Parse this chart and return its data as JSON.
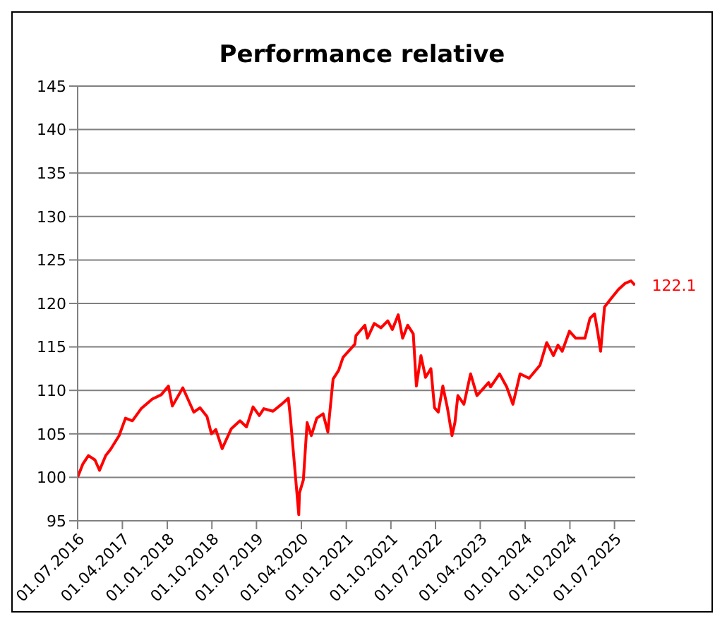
{
  "chart_data": {
    "type": "line",
    "title": "Performance relative",
    "x": [
      "2016-07-01",
      "2016-08-01",
      "2016-09-05",
      "2016-10-15",
      "2016-11-12",
      "2016-12-20",
      "2017-01-18",
      "2017-03-12",
      "2017-04-20",
      "2017-06-01",
      "2017-07-25",
      "2017-10-01",
      "2017-11-25",
      "2018-01-08",
      "2018-02-01",
      "2018-04-06",
      "2018-06-12",
      "2018-07-20",
      "2018-09-01",
      "2018-09-28",
      "2018-10-25",
      "2018-12-03",
      "2019-01-28",
      "2019-03-22",
      "2019-05-01",
      "2019-06-10",
      "2019-07-18",
      "2019-08-15",
      "2019-10-10",
      "2019-12-01",
      "2020-01-12",
      "2020-01-25",
      "2020-03-16",
      "2020-03-20",
      "2020-04-13",
      "2020-05-06",
      "2020-06-01",
      "2020-07-04",
      "2020-08-12",
      "2020-09-10",
      "2020-10-12",
      "2020-11-15",
      "2020-12-12",
      "2021-02-22",
      "2021-03-01",
      "2021-04-25",
      "2021-05-10",
      "2021-06-21",
      "2021-08-01",
      "2021-09-12",
      "2021-10-10",
      "2021-11-15",
      "2021-12-12",
      "2022-01-12",
      "2022-02-15",
      "2022-03-06",
      "2022-04-03",
      "2022-05-01",
      "2022-06-03",
      "2022-06-25",
      "2022-07-18",
      "2022-08-15",
      "2022-09-12",
      "2022-10-10",
      "2022-10-28",
      "2022-11-15",
      "2022-12-22",
      "2023-02-01",
      "2023-03-12",
      "2023-05-22",
      "2023-06-03",
      "2023-07-28",
      "2023-09-10",
      "2023-10-18",
      "2023-12-01",
      "2024-01-25",
      "2024-04-01",
      "2024-05-12",
      "2024-06-22",
      "2024-07-20",
      "2024-08-15",
      "2024-09-28",
      "2024-11-06",
      "2025-01-01",
      "2025-02-01",
      "2025-03-01",
      "2025-03-22",
      "2025-04-07",
      "2025-05-01",
      "2025-06-12",
      "2025-07-25",
      "2025-09-03",
      "2025-10-10",
      "2025-11-03"
    ],
    "values": [
      100,
      101.5,
      102.5,
      102,
      100.8,
      102.5,
      103.2,
      104.8,
      106.8,
      106.5,
      107.9,
      109,
      109.5,
      110.5,
      108.2,
      110.3,
      107.5,
      108,
      107,
      105,
      105.5,
      103.3,
      105.6,
      106.5,
      105.8,
      108.1,
      107.1,
      107.9,
      107.6,
      108.4,
      109.1,
      106.8,
      95.7,
      98.2,
      99.7,
      106.3,
      104.8,
      106.8,
      107.3,
      105.2,
      111.3,
      112.3,
      113.8,
      115.3,
      116.3,
      117.5,
      116,
      117.7,
      117.2,
      118,
      117,
      118.7,
      116,
      117.5,
      116.5,
      110.5,
      114,
      111.5,
      112.5,
      108,
      107.5,
      110.5,
      108,
      104.8,
      106.3,
      109.4,
      108.4,
      111.9,
      109.4,
      110.9,
      110.4,
      111.9,
      110.4,
      108.4,
      111.9,
      111.4,
      112.9,
      115.5,
      114,
      115.2,
      114.5,
      116.8,
      116,
      116,
      118.3,
      118.8,
      116.5,
      114.5,
      119.6,
      120.6,
      121.6,
      122.3,
      122.6,
      122.1
    ],
    "color": "#ff0000",
    "xlim": [
      "2016-07-01",
      "2025-11-05"
    ],
    "xticks": [
      {
        "value": "2016-07-01",
        "label": "01.07.2016"
      },
      {
        "value": "2017-04-01",
        "label": "01.04.2017"
      },
      {
        "value": "2018-01-01",
        "label": "01.01.2018"
      },
      {
        "value": "2018-10-01",
        "label": "01.10.2018"
      },
      {
        "value": "2019-07-01",
        "label": "01.07.2019"
      },
      {
        "value": "2020-04-01",
        "label": "01.04.2020"
      },
      {
        "value": "2021-01-01",
        "label": "01.01.2021"
      },
      {
        "value": "2021-10-01",
        "label": "01.10.2021"
      },
      {
        "value": "2022-07-01",
        "label": "01.07.2022"
      },
      {
        "value": "2023-04-01",
        "label": "01.04.2023"
      },
      {
        "value": "2024-01-01",
        "label": "01.01.2024"
      },
      {
        "value": "2024-10-01",
        "label": "01.10.2024"
      },
      {
        "value": "2025-07-01",
        "label": "01.07.2025"
      }
    ],
    "ylim": [
      95,
      145
    ],
    "yticks": [
      95,
      100,
      105,
      110,
      115,
      120,
      125,
      130,
      135,
      140,
      145
    ],
    "grid": "y",
    "annotations": [
      {
        "text": "122.1",
        "x": "2025-11-03",
        "y": 122.1
      }
    ]
  }
}
